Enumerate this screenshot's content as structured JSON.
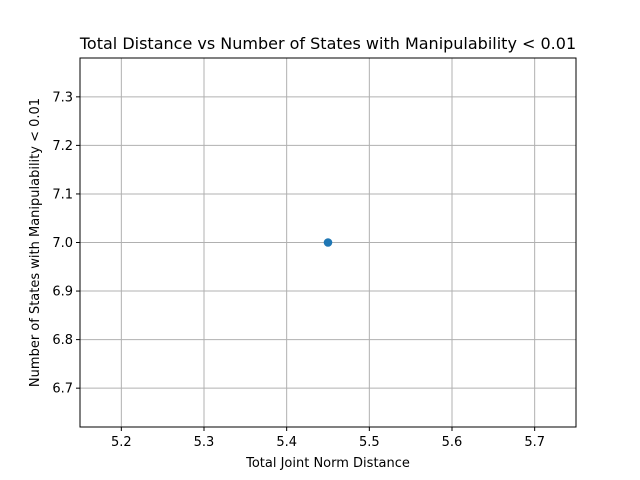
{
  "chart_data": {
    "type": "scatter",
    "title": "Total Distance vs Number of States with Manipulability < 0.01",
    "xlabel": "Total Joint Norm Distance",
    "ylabel": "Number of States with Manipulability < 0.01",
    "xlim": [
      5.15,
      5.75
    ],
    "ylim": [
      6.62,
      7.38
    ],
    "x_ticks": [
      5.2,
      5.3,
      5.4,
      5.5,
      5.6,
      5.7
    ],
    "x_tick_labels": [
      "5.2",
      "5.3",
      "5.4",
      "5.5",
      "5.6",
      "5.7"
    ],
    "y_ticks": [
      6.7,
      6.8,
      6.9,
      7.0,
      7.1,
      7.2,
      7.3
    ],
    "y_tick_labels": [
      "6.7",
      "6.8",
      "6.9",
      "7.0",
      "7.1",
      "7.2",
      "7.3"
    ],
    "grid": true,
    "points": [
      {
        "x": 5.45,
        "y": 7.0
      }
    ],
    "colors": {
      "point": "#1f77b4",
      "grid": "#b0b0b0",
      "axes": "#000000"
    }
  }
}
